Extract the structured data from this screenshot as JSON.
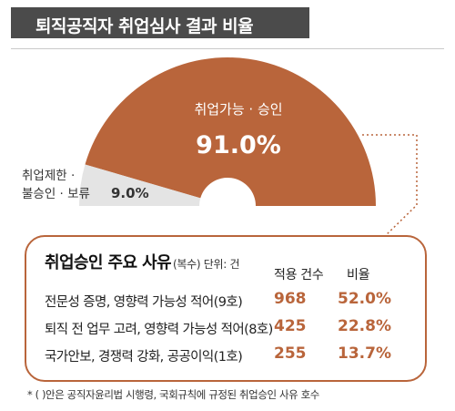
{
  "title": "퇴직공직자 취업심사 결과 비율",
  "colors": {
    "accent": "#b9653b",
    "muted_slice": "#e4e4e4",
    "title_bar": "#4b4b4b"
  },
  "chart_data": {
    "type": "pie",
    "subtype": "semi-donut",
    "slices": [
      {
        "label": "취업가능 · 승인",
        "value": 91.0,
        "display": "91.0%"
      },
      {
        "label_line1": "취업제한 ·",
        "label_line2": "불승인 · 보류",
        "value": 9.0,
        "display": "9.0%"
      }
    ]
  },
  "table": {
    "title": "취업승인 주요 사유",
    "subtitle": "(복수) 단위: 건",
    "col_count": "적용 건수",
    "col_ratio": "비율",
    "rows": [
      {
        "reason": "전문성 증명, 영향력 가능성 적어(9호)",
        "count": "968",
        "ratio": "52.0%"
      },
      {
        "reason": "퇴직 전 업무 고려, 영향력 가능성 적어(8호)",
        "count": "425",
        "ratio": "22.8%"
      },
      {
        "reason": "국가안보, 경쟁력 강화, 공공이익(1호)",
        "count": "255",
        "ratio": "13.7%"
      }
    ]
  },
  "footnote": "* ( )안은 공직자윤리법 시행령, 국회규칙에 규정된 취업승인 사유 호수"
}
